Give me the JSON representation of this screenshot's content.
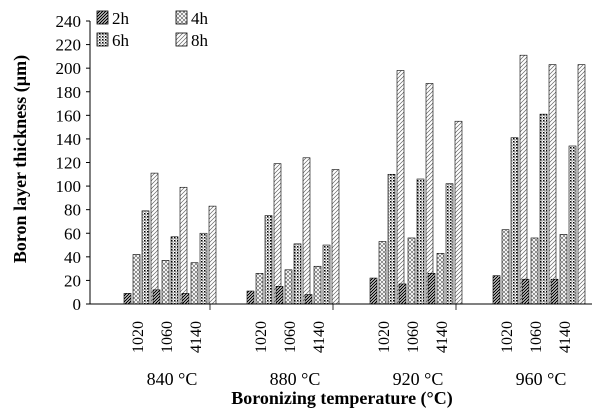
{
  "chart_data": {
    "type": "bar",
    "xlabel": "Boronizing temperature (°C)",
    "ylabel": "Boron layer thickness (µm)",
    "ylim": [
      0,
      240
    ],
    "yticks": [
      0,
      20,
      40,
      60,
      80,
      100,
      120,
      140,
      160,
      180,
      200,
      220,
      240
    ],
    "grid": false,
    "legend_position": "top-left",
    "groups": [
      {
        "label": "840 °C",
        "categories": [
          "1020",
          "1060",
          "4140"
        ]
      },
      {
        "label": "880 °C",
        "categories": [
          "1020",
          "1060",
          "4140"
        ]
      },
      {
        "label": "920 °C",
        "categories": [
          "1020",
          "1060",
          "4140"
        ]
      },
      {
        "label": "960 °C",
        "categories": [
          "1020",
          "1060",
          "4140"
        ]
      }
    ],
    "series": [
      {
        "name": "2h",
        "pattern": "diagonal-dense",
        "values": [
          9,
          12,
          9,
          11,
          15,
          8,
          22,
          17,
          26,
          24,
          21,
          21
        ]
      },
      {
        "name": "4h",
        "pattern": "cross-hatch",
        "values": [
          42,
          37,
          35,
          26,
          29,
          32,
          53,
          56,
          43,
          63,
          56,
          59
        ]
      },
      {
        "name": "6h",
        "pattern": "dots",
        "values": [
          79,
          57,
          60,
          75,
          51,
          50,
          110,
          106,
          102,
          141,
          161,
          134
        ]
      },
      {
        "name": "8h",
        "pattern": "diagonal-light",
        "values": [
          111,
          99,
          83,
          119,
          124,
          114,
          198,
          187,
          155,
          211,
          203,
          203
        ]
      }
    ]
  }
}
